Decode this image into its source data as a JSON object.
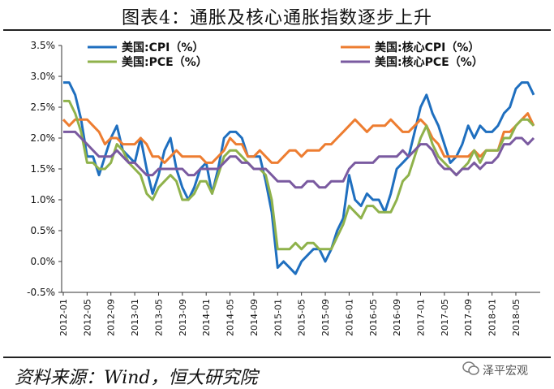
{
  "title": "图表4：通胀及核心通胀指数逐步上升",
  "source": "资料来源：Wind，恒大研究院",
  "watermark": "泽平宏观",
  "chart_data": {
    "type": "line",
    "ylim": [
      -0.5,
      3.5
    ],
    "yticks": [
      "-0.5%",
      "0.0%",
      "0.5%",
      "1.0%",
      "1.5%",
      "2.0%",
      "2.5%",
      "3.0%",
      "3.5%"
    ],
    "xlabels": [
      "2012-01",
      "2012-05",
      "2012-09",
      "2013-01",
      "2013-05",
      "2013-09",
      "2014-01",
      "2014-05",
      "2014-09",
      "2015-01",
      "2015-05",
      "2015-09",
      "2016-01",
      "2016-05",
      "2016-09",
      "2017-01",
      "2017-05",
      "2017-09",
      "2018-01",
      "2018-05"
    ],
    "x_start": "2012-01",
    "legend": [
      "美国:CPI（%）",
      "美国:核心CPI（%）",
      "美国:PCE（%）",
      "美国:核心PCE（%）"
    ],
    "series": [
      {
        "name": "美国:CPI（%）",
        "color": "#1f6fbf",
        "values": [
          2.9,
          2.9,
          2.7,
          2.3,
          1.7,
          1.7,
          1.4,
          1.7,
          2.0,
          2.2,
          1.8,
          1.7,
          1.6,
          2.0,
          1.5,
          1.1,
          1.4,
          1.8,
          2.0,
          1.5,
          1.2,
          1.0,
          1.2,
          1.5,
          1.6,
          1.1,
          1.5,
          2.0,
          2.1,
          2.1,
          2.0,
          1.7,
          1.7,
          1.7,
          1.3,
          0.8,
          -0.1,
          0.0,
          -0.1,
          -0.2,
          0.0,
          0.1,
          0.2,
          0.2,
          0.0,
          0.2,
          0.5,
          0.7,
          1.4,
          1.0,
          0.9,
          1.1,
          1.0,
          1.0,
          0.8,
          1.1,
          1.5,
          1.6,
          1.7,
          2.1,
          2.5,
          2.7,
          2.4,
          2.2,
          1.9,
          1.6,
          1.7,
          1.9,
          2.2,
          2.0,
          2.2,
          2.1,
          2.1,
          2.2,
          2.4,
          2.5,
          2.8,
          2.9,
          2.9,
          2.7
        ]
      },
      {
        "name": "美国:核心CPI（%）",
        "color": "#ed7d31",
        "values": [
          2.3,
          2.2,
          2.3,
          2.3,
          2.3,
          2.2,
          2.1,
          1.9,
          2.0,
          2.0,
          1.9,
          1.9,
          1.9,
          2.0,
          1.9,
          1.7,
          1.7,
          1.6,
          1.7,
          1.8,
          1.7,
          1.7,
          1.7,
          1.7,
          1.6,
          1.6,
          1.7,
          1.8,
          2.0,
          1.9,
          1.9,
          1.7,
          1.7,
          1.8,
          1.7,
          1.6,
          1.6,
          1.7,
          1.8,
          1.8,
          1.7,
          1.8,
          1.8,
          1.8,
          1.9,
          1.9,
          2.0,
          2.1,
          2.2,
          2.3,
          2.2,
          2.1,
          2.2,
          2.2,
          2.2,
          2.3,
          2.2,
          2.1,
          2.1,
          2.2,
          2.3,
          2.2,
          2.0,
          1.9,
          1.7,
          1.7,
          1.7,
          1.7,
          1.7,
          1.8,
          1.7,
          1.8,
          1.8,
          1.8,
          2.1,
          2.1,
          2.2,
          2.3,
          2.4,
          2.2
        ]
      },
      {
        "name": "美国:PCE（%）",
        "color": "#8fb24b",
        "values": [
          2.6,
          2.6,
          2.4,
          2.1,
          1.6,
          1.6,
          1.5,
          1.5,
          1.6,
          1.9,
          1.8,
          1.6,
          1.5,
          1.4,
          1.1,
          1.0,
          1.2,
          1.3,
          1.4,
          1.3,
          1.0,
          1.0,
          1.1,
          1.3,
          1.3,
          1.1,
          1.4,
          1.7,
          1.8,
          1.8,
          1.7,
          1.6,
          1.5,
          1.5,
          1.4,
          1.0,
          0.2,
          0.2,
          0.2,
          0.3,
          0.2,
          0.3,
          0.3,
          0.2,
          0.2,
          0.2,
          0.4,
          0.6,
          0.9,
          0.8,
          0.7,
          0.9,
          0.9,
          0.8,
          0.8,
          0.8,
          1.0,
          1.3,
          1.4,
          1.7,
          2.0,
          2.2,
          1.9,
          1.7,
          1.6,
          1.5,
          1.4,
          1.5,
          1.6,
          1.8,
          1.6,
          1.8,
          1.8,
          1.8,
          2.0,
          2.0,
          2.2,
          2.3,
          2.3,
          2.2
        ]
      },
      {
        "name": "美国:核心PCE（%）",
        "color": "#7a5aa0",
        "values": [
          2.1,
          2.1,
          2.1,
          2.0,
          1.9,
          1.8,
          1.7,
          1.7,
          1.7,
          1.8,
          1.7,
          1.6,
          1.6,
          1.5,
          1.4,
          1.4,
          1.5,
          1.5,
          1.5,
          1.5,
          1.5,
          1.4,
          1.4,
          1.5,
          1.5,
          1.5,
          1.5,
          1.6,
          1.7,
          1.7,
          1.6,
          1.6,
          1.5,
          1.5,
          1.5,
          1.4,
          1.3,
          1.3,
          1.3,
          1.2,
          1.2,
          1.3,
          1.3,
          1.2,
          1.2,
          1.3,
          1.3,
          1.3,
          1.5,
          1.6,
          1.6,
          1.6,
          1.6,
          1.7,
          1.7,
          1.7,
          1.7,
          1.8,
          1.7,
          1.8,
          1.9,
          1.9,
          1.8,
          1.6,
          1.5,
          1.5,
          1.4,
          1.5,
          1.5,
          1.6,
          1.5,
          1.6,
          1.6,
          1.7,
          1.9,
          1.9,
          2.0,
          2.0,
          1.9,
          2.0
        ]
      }
    ]
  }
}
